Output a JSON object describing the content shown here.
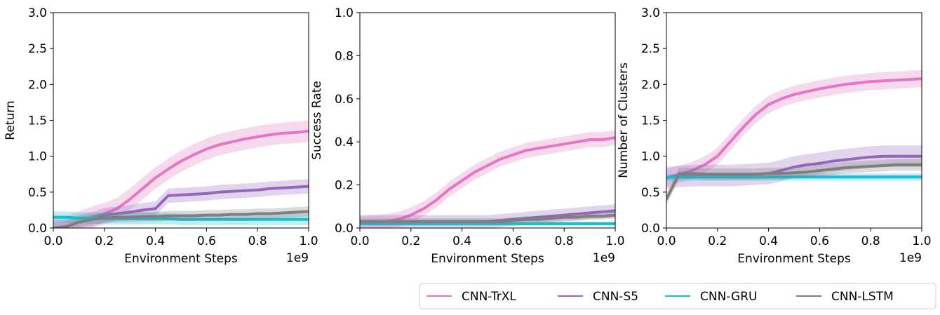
{
  "chart_data": [
    {
      "type": "line",
      "title": "",
      "xlabel": "Environment Steps",
      "ylabel": "Return",
      "x_multiplier_label": "1e9",
      "xlim": [
        0.0,
        1.0
      ],
      "ylim": [
        0.0,
        3.0
      ],
      "xticks": [
        "0.0",
        "0.2",
        "0.4",
        "0.6",
        "0.8",
        "1.0"
      ],
      "yticks": [
        "0.0",
        "0.5",
        "1.0",
        "1.5",
        "2.0",
        "2.5",
        "3.0"
      ],
      "x": [
        0.0,
        0.05,
        0.1,
        0.15,
        0.2,
        0.25,
        0.3,
        0.35,
        0.4,
        0.45,
        0.5,
        0.55,
        0.6,
        0.65,
        0.7,
        0.75,
        0.8,
        0.85,
        0.9,
        0.95,
        1.0
      ],
      "series": [
        {
          "name": "CNN-TrXL",
          "color": "#e377c2",
          "band": 0.15,
          "values": [
            0.0,
            0.02,
            0.08,
            0.15,
            0.2,
            0.27,
            0.4,
            0.55,
            0.7,
            0.82,
            0.93,
            1.02,
            1.1,
            1.16,
            1.2,
            1.24,
            1.27,
            1.3,
            1.32,
            1.33,
            1.35
          ]
        },
        {
          "name": "CNN-S5",
          "color": "#9467bd",
          "band": 0.1,
          "values": [
            0.0,
            0.02,
            0.08,
            0.12,
            0.18,
            0.2,
            0.22,
            0.25,
            0.27,
            0.45,
            0.46,
            0.47,
            0.48,
            0.5,
            0.51,
            0.52,
            0.53,
            0.55,
            0.56,
            0.57,
            0.58
          ]
        },
        {
          "name": "CNN-GRU",
          "color": "#17becf",
          "band": 0.08,
          "values": [
            0.15,
            0.15,
            0.14,
            0.14,
            0.13,
            0.13,
            0.13,
            0.13,
            0.13,
            0.13,
            0.12,
            0.12,
            0.12,
            0.12,
            0.12,
            0.12,
            0.12,
            0.12,
            0.12,
            0.12,
            0.12
          ]
        },
        {
          "name": "CNN-LSTM",
          "color": "#7f7f7f",
          "band": 0.07,
          "values": [
            0.0,
            0.02,
            0.08,
            0.12,
            0.14,
            0.15,
            0.15,
            0.16,
            0.16,
            0.17,
            0.17,
            0.17,
            0.18,
            0.18,
            0.19,
            0.19,
            0.2,
            0.2,
            0.21,
            0.22,
            0.23
          ]
        }
      ]
    },
    {
      "type": "line",
      "title": "",
      "xlabel": "Environment Steps",
      "ylabel": "Success Rate",
      "x_multiplier_label": "1e9",
      "xlim": [
        0.0,
        1.0
      ],
      "ylim": [
        0.0,
        1.0
      ],
      "xticks": [
        "0.0",
        "0.2",
        "0.4",
        "0.6",
        "0.8",
        "1.0"
      ],
      "yticks": [
        "0.0",
        "0.2",
        "0.4",
        "0.6",
        "0.8",
        "1.0"
      ],
      "x": [
        0.0,
        0.05,
        0.1,
        0.15,
        0.2,
        0.25,
        0.3,
        0.35,
        0.4,
        0.45,
        0.5,
        0.55,
        0.6,
        0.65,
        0.7,
        0.75,
        0.8,
        0.85,
        0.9,
        0.95,
        1.0
      ],
      "series": [
        {
          "name": "CNN-TrXL",
          "color": "#e377c2",
          "band": 0.035,
          "values": [
            0.02,
            0.025,
            0.03,
            0.04,
            0.06,
            0.09,
            0.13,
            0.18,
            0.22,
            0.26,
            0.29,
            0.32,
            0.34,
            0.36,
            0.37,
            0.38,
            0.39,
            0.4,
            0.41,
            0.41,
            0.42
          ]
        },
        {
          "name": "CNN-S5",
          "color": "#9467bd",
          "band": 0.03,
          "values": [
            0.03,
            0.03,
            0.03,
            0.03,
            0.03,
            0.03,
            0.03,
            0.03,
            0.03,
            0.03,
            0.03,
            0.035,
            0.04,
            0.045,
            0.05,
            0.055,
            0.06,
            0.065,
            0.07,
            0.075,
            0.08
          ]
        },
        {
          "name": "CNN-GRU",
          "color": "#17becf",
          "band": 0.01,
          "values": [
            0.02,
            0.02,
            0.02,
            0.02,
            0.02,
            0.02,
            0.02,
            0.02,
            0.02,
            0.02,
            0.02,
            0.02,
            0.02,
            0.02,
            0.02,
            0.02,
            0.02,
            0.02,
            0.02,
            0.02,
            0.02
          ]
        },
        {
          "name": "CNN-LSTM",
          "color": "#7f7f7f",
          "band": 0.015,
          "values": [
            0.03,
            0.03,
            0.03,
            0.03,
            0.03,
            0.03,
            0.03,
            0.03,
            0.03,
            0.03,
            0.03,
            0.03,
            0.035,
            0.04,
            0.04,
            0.045,
            0.05,
            0.05,
            0.055,
            0.055,
            0.06
          ]
        }
      ]
    },
    {
      "type": "line",
      "title": "",
      "xlabel": "Environment Steps",
      "ylabel": "Number of Clusters",
      "x_multiplier_label": "1e9",
      "xlim": [
        0.0,
        1.0
      ],
      "ylim": [
        0.0,
        3.0
      ],
      "xticks": [
        "0.0",
        "0.2",
        "0.4",
        "0.6",
        "0.8",
        "1.0"
      ],
      "yticks": [
        "0.0",
        "0.5",
        "1.0",
        "1.5",
        "2.0",
        "2.5",
        "3.0"
      ],
      "x": [
        0.0,
        0.05,
        0.1,
        0.15,
        0.2,
        0.25,
        0.3,
        0.35,
        0.4,
        0.45,
        0.5,
        0.55,
        0.6,
        0.65,
        0.7,
        0.75,
        0.8,
        0.85,
        0.9,
        0.95,
        1.0
      ],
      "series": [
        {
          "name": "CNN-TrXL",
          "color": "#e377c2",
          "band": 0.12,
          "values": [
            0.7,
            0.75,
            0.8,
            0.88,
            1.0,
            1.2,
            1.4,
            1.58,
            1.72,
            1.8,
            1.86,
            1.9,
            1.94,
            1.97,
            2.0,
            2.02,
            2.04,
            2.05,
            2.06,
            2.07,
            2.08
          ]
        },
        {
          "name": "CNN-S5",
          "color": "#9467bd",
          "band": 0.15,
          "values": [
            0.7,
            0.72,
            0.73,
            0.73,
            0.73,
            0.73,
            0.74,
            0.75,
            0.76,
            0.8,
            0.85,
            0.88,
            0.9,
            0.93,
            0.95,
            0.97,
            0.99,
            1.0,
            1.0,
            1.0,
            1.0
          ]
        },
        {
          "name": "CNN-GRU",
          "color": "#17becf",
          "band": 0.05,
          "values": [
            0.7,
            0.71,
            0.71,
            0.71,
            0.71,
            0.71,
            0.71,
            0.71,
            0.71,
            0.71,
            0.71,
            0.71,
            0.71,
            0.71,
            0.71,
            0.71,
            0.71,
            0.71,
            0.71,
            0.71,
            0.71
          ]
        },
        {
          "name": "CNN-LSTM",
          "color": "#7f7f7f",
          "band": 0.08,
          "values": [
            0.4,
            0.76,
            0.76,
            0.75,
            0.75,
            0.75,
            0.75,
            0.75,
            0.76,
            0.76,
            0.77,
            0.78,
            0.8,
            0.82,
            0.84,
            0.85,
            0.86,
            0.87,
            0.88,
            0.88,
            0.88
          ]
        }
      ]
    }
  ],
  "legend": {
    "placement": "bottom-right",
    "items": [
      {
        "label": "CNN-TrXL",
        "color": "#e377c2"
      },
      {
        "label": "CNN-S5",
        "color": "#9467bd"
      },
      {
        "label": "CNN-GRU",
        "color": "#17becf"
      },
      {
        "label": "CNN-LSTM",
        "color": "#7f7f7f"
      }
    ]
  }
}
